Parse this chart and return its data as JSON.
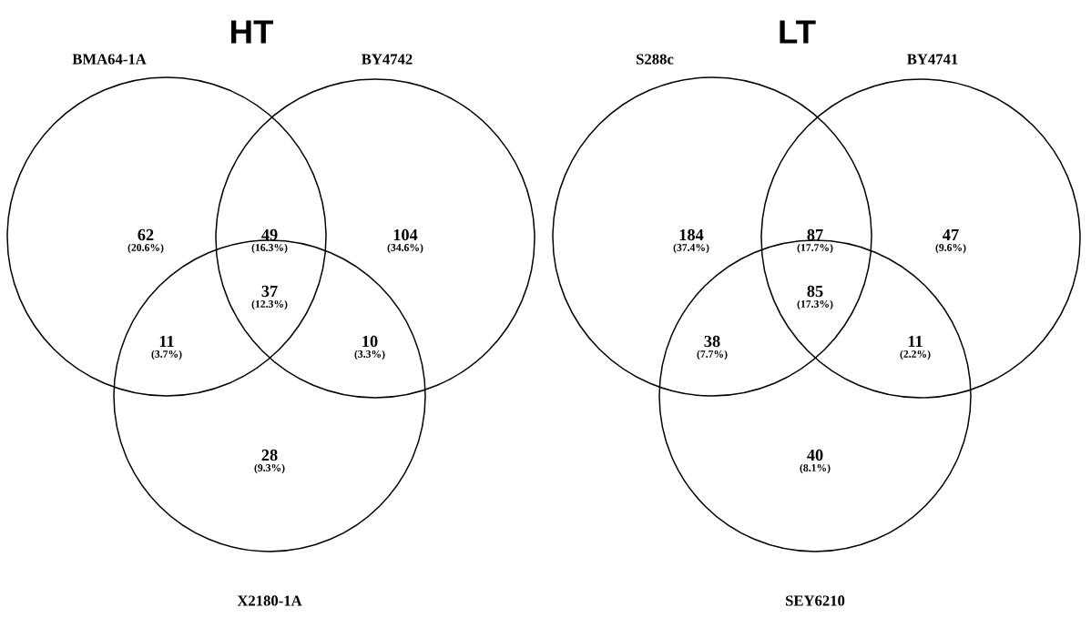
{
  "chart_data": [
    {
      "type": "other",
      "title": "HT",
      "annotations": [
        "BMA64-1A",
        "BY4742",
        "X2180-1A",
        "(20.6%)",
        "(16.3%)",
        "(34.6%)",
        "(12.3%)",
        "(3.7%)",
        "(3.3%)",
        "(9.3%)"
      ],
      "categories": [
        null,
        null,
        null,
        null,
        null,
        null,
        null
      ],
      "values": [
        62,
        49,
        104,
        37,
        11,
        10,
        28
      ],
      "data_labels": true
    },
    {
      "type": "other",
      "title": "LT",
      "annotations": [
        "S288c",
        "BY4741",
        "SEY6210",
        "(37.4%)",
        "(17.7%)",
        "(9.6%)",
        "(17.3%)",
        "(7.7%)",
        "(2.2%)",
        "(8.1%)"
      ],
      "categories": [
        null,
        null,
        null,
        null,
        null,
        null,
        null
      ],
      "values": [
        184,
        87,
        47,
        85,
        38,
        11,
        40
      ],
      "data_labels": true
    }
  ]
}
